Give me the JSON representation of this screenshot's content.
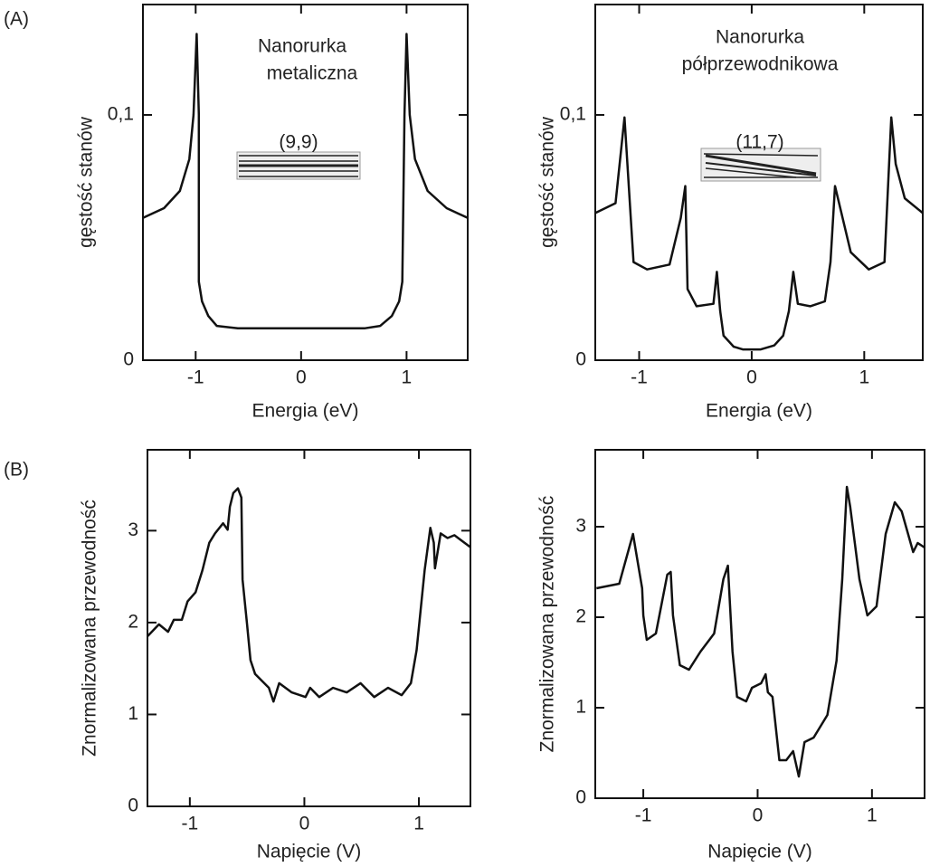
{
  "panel_labels": [
    "(A)",
    "(B)"
  ],
  "chart_data": [
    {
      "type": "line",
      "ylabel": "gęstość stanów",
      "xlabel": "Energia (eV)",
      "annotations": [
        "Nanorurka",
        "metaliczna",
        "(9,9)"
      ],
      "xlim": [
        -1.5,
        1.58
      ],
      "ylim": [
        0,
        0.145
      ],
      "xticks": [
        -1,
        0,
        1
      ],
      "yticks": [
        0,
        {
          "value": 0.1,
          "label": "0,1"
        }
      ],
      "color": "#111",
      "x": [
        -1.5,
        -1.3,
        -1.15,
        -1.06,
        -1.02,
        -0.99,
        -0.97,
        -0.97,
        -0.94,
        -0.88,
        -0.8,
        -0.6,
        0,
        0.6,
        0.75,
        0.86,
        0.93,
        0.96,
        0.98,
        1.0,
        1.03,
        1.08,
        1.2,
        1.38,
        1.58
      ],
      "values": [
        0.058,
        0.062,
        0.069,
        0.082,
        0.1,
        0.133,
        0.1,
        0.032,
        0.024,
        0.018,
        0.014,
        0.013,
        0.013,
        0.013,
        0.014,
        0.018,
        0.024,
        0.032,
        0.1,
        0.133,
        0.1,
        0.082,
        0.069,
        0.062,
        0.058
      ]
    },
    {
      "type": "line",
      "ylabel": "gęstość stanów",
      "xlabel": "Energia (eV)",
      "annotations": [
        "Nanorurka",
        "półprzewodnikowa",
        "(11,7)"
      ],
      "xlim": [
        -1.39,
        1.52
      ],
      "ylim": [
        0,
        0.145
      ],
      "xticks": [
        -1,
        0,
        1
      ],
      "yticks": [
        0,
        {
          "value": 0.1,
          "label": "0,1"
        }
      ],
      "color": "#111",
      "x": [
        -1.39,
        -1.21,
        -1.13,
        -1.05,
        -0.93,
        -0.73,
        -0.63,
        -0.59,
        -0.57,
        -0.49,
        -0.34,
        -0.31,
        -0.28,
        -0.25,
        -0.16,
        -0.08,
        0.08,
        0.2,
        0.28,
        0.33,
        0.37,
        0.41,
        0.52,
        0.65,
        0.7,
        0.74,
        0.88,
        1.04,
        1.18,
        1.24,
        1.28,
        1.36,
        1.52
      ],
      "values": [
        0.06,
        0.064,
        0.099,
        0.04,
        0.037,
        0.039,
        0.058,
        0.071,
        0.029,
        0.022,
        0.023,
        0.036,
        0.02,
        0.01,
        0.0055,
        0.0044,
        0.0044,
        0.006,
        0.01,
        0.02,
        0.036,
        0.023,
        0.022,
        0.024,
        0.04,
        0.071,
        0.044,
        0.037,
        0.04,
        0.099,
        0.08,
        0.066,
        0.06
      ]
    },
    {
      "type": "line",
      "ylabel": "Znormalizowana przewodność",
      "xlabel": "Napięcie (V)",
      "xlim": [
        -1.37,
        1.45
      ],
      "ylim": [
        0,
        3.88
      ],
      "xticks": [
        -1,
        0,
        1
      ],
      "yticks": [
        0,
        1,
        2,
        3
      ],
      "color": "#111",
      "x": [
        -1.37,
        -1.27,
        -1.19,
        -1.14,
        -1.07,
        -1.02,
        -0.95,
        -0.89,
        -0.83,
        -0.78,
        -0.71,
        -0.67,
        -0.65,
        -0.62,
        -0.58,
        -0.55,
        -0.54,
        -0.5,
        -0.47,
        -0.43,
        -0.31,
        -0.27,
        -0.22,
        -0.11,
        0.01,
        0.05,
        0.13,
        0.25,
        0.37,
        0.49,
        0.61,
        0.73,
        0.85,
        0.93,
        0.98,
        1.05,
        1.1,
        1.13,
        1.14,
        1.19,
        1.25,
        1.31,
        1.45
      ],
      "values": [
        1.85,
        1.98,
        1.9,
        2.03,
        2.03,
        2.23,
        2.33,
        2.57,
        2.87,
        2.97,
        3.08,
        3.01,
        3.26,
        3.41,
        3.46,
        3.36,
        2.47,
        1.98,
        1.59,
        1.44,
        1.29,
        1.14,
        1.34,
        1.24,
        1.19,
        1.29,
        1.19,
        1.29,
        1.24,
        1.34,
        1.19,
        1.29,
        1.21,
        1.34,
        1.7,
        2.57,
        3.03,
        2.87,
        2.59,
        2.97,
        2.92,
        2.95,
        2.82
      ]
    },
    {
      "type": "line",
      "ylabel": "Znormalizowana przewodność",
      "xlabel": "Napięcie (V)",
      "xlim": [
        -1.42,
        1.46
      ],
      "ylim": [
        0,
        3.85
      ],
      "xticks": [
        -1,
        0,
        1
      ],
      "yticks": [
        0,
        1,
        2,
        3
      ],
      "color": "#111",
      "x": [
        -1.41,
        -1.21,
        -1.09,
        -1.01,
        -1.0,
        -0.97,
        -0.89,
        -0.79,
        -0.76,
        -0.74,
        -0.68,
        -0.6,
        -0.5,
        -0.38,
        -0.3,
        -0.26,
        -0.22,
        -0.18,
        -0.1,
        -0.05,
        0.03,
        0.07,
        0.09,
        0.13,
        0.19,
        0.25,
        0.31,
        0.36,
        0.41,
        0.49,
        0.61,
        0.69,
        0.74,
        0.78,
        0.81,
        0.85,
        0.89,
        0.96,
        1.04,
        1.12,
        1.2,
        1.26,
        1.36,
        1.4,
        1.46
      ],
      "values": [
        2.32,
        2.37,
        2.92,
        2.32,
        2.02,
        1.75,
        1.82,
        2.47,
        2.5,
        2.02,
        1.47,
        1.42,
        1.62,
        1.82,
        2.42,
        2.57,
        1.62,
        1.12,
        1.07,
        1.22,
        1.27,
        1.37,
        1.17,
        1.12,
        0.42,
        0.42,
        0.52,
        0.24,
        0.62,
        0.67,
        0.92,
        1.52,
        2.42,
        3.44,
        3.22,
        2.82,
        2.42,
        2.02,
        2.12,
        2.92,
        3.27,
        3.17,
        2.72,
        2.82,
        2.77
      ]
    }
  ]
}
